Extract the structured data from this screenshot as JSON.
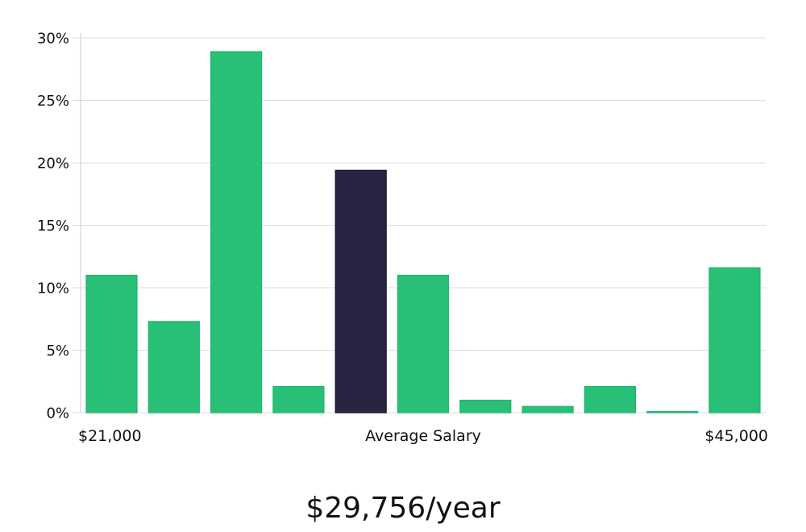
{
  "chart_data": {
    "type": "bar",
    "values": [
      11.0,
      7.3,
      28.9,
      2.1,
      19.4,
      11.0,
      1.0,
      0.5,
      2.1,
      0.05,
      11.6
    ],
    "highlight_index": 4,
    "ylim": [
      0,
      30
    ],
    "y_ticks": [
      "0%",
      "5%",
      "10%",
      "15%",
      "20%",
      "25%",
      "30%"
    ],
    "x_label_left": "$21,000",
    "x_label_center": "Average Salary",
    "x_label_right": "$45,000",
    "grid": true,
    "colors": {
      "bar": "#28bf77",
      "bar_highlight": "#282543",
      "grid": "#dddddd",
      "axis": "#cccccc"
    }
  },
  "salary_text": "$29,756/year"
}
